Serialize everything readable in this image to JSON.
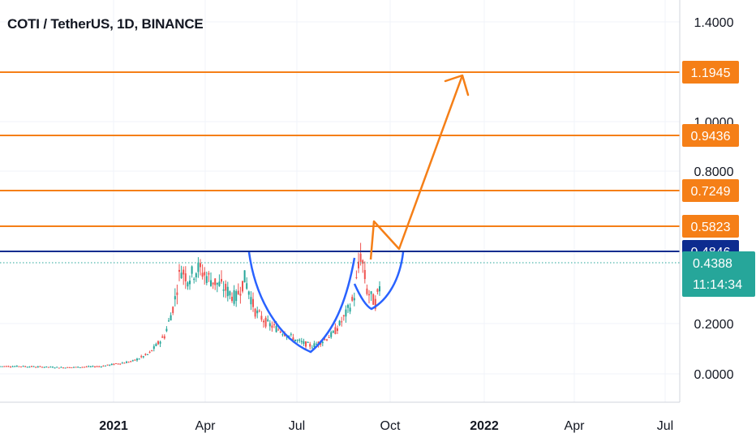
{
  "title": "COTI / TetherUS, 1D, BINANCE",
  "chart_data": {
    "type": "candlestick",
    "symbol": "COTI / TetherUS",
    "interval": "1D",
    "exchange": "BINANCE",
    "yticks": [
      "1.4000",
      "1.0000",
      "0.8000",
      "0.2000",
      "0.0000"
    ],
    "xticks": [
      {
        "label": "2021",
        "bold": true
      },
      {
        "label": "Apr",
        "bold": false
      },
      {
        "label": "Jul",
        "bold": false
      },
      {
        "label": "Oct",
        "bold": false
      },
      {
        "label": "2022",
        "bold": true
      },
      {
        "label": "Apr",
        "bold": false
      },
      {
        "label": "Jul",
        "bold": false
      }
    ],
    "levels": [
      {
        "label": "1.1945",
        "value": 1.1945,
        "color": "#f57f17"
      },
      {
        "label": "0.9436",
        "value": 0.9436,
        "color": "#f57f17"
      },
      {
        "label": "0.7249",
        "value": 0.7249,
        "color": "#f57f17"
      },
      {
        "label": "0.5823",
        "value": 0.5823,
        "color": "#f57f17"
      },
      {
        "label": "0.4846",
        "value": 0.4846,
        "color": "#0d2c8f"
      }
    ],
    "current_price": {
      "price": "0.4388",
      "countdown": "11:14:34",
      "color": "#26a69a"
    },
    "price_series": {
      "dates": [
        "2020-10-01",
        "2020-11-15",
        "2020-12-20",
        "2021-01-20",
        "2021-02-05",
        "2021-02-20",
        "2021-03-01",
        "2021-03-08",
        "2021-03-15",
        "2021-03-25",
        "2021-04-05",
        "2021-04-20",
        "2021-05-01",
        "2021-05-10",
        "2021-05-20",
        "2021-06-01",
        "2021-06-15",
        "2021-07-01",
        "2021-07-15",
        "2021-07-25",
        "2021-08-05",
        "2021-08-15",
        "2021-08-25",
        "2021-09-01",
        "2021-09-07",
        "2021-09-15",
        "2021-09-20",
        "2021-09-25"
      ],
      "close": [
        0.03,
        0.025,
        0.03,
        0.05,
        0.08,
        0.15,
        0.27,
        0.42,
        0.38,
        0.42,
        0.38,
        0.34,
        0.3,
        0.38,
        0.25,
        0.2,
        0.17,
        0.13,
        0.11,
        0.13,
        0.16,
        0.22,
        0.3,
        0.48,
        0.33,
        0.28,
        0.35,
        0.44
      ]
    }
  },
  "colors": {
    "accent_orange": "#f57f17",
    "level_blue": "#0d2c8f",
    "pattern_blue": "#2962ff",
    "up": "#26a69a",
    "down": "#ef5350"
  }
}
